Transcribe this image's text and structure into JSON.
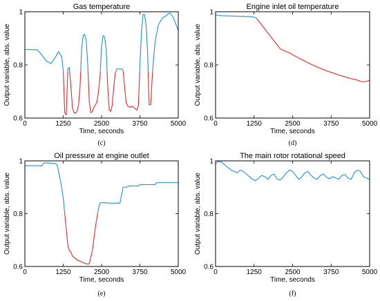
{
  "chart_data": [
    {
      "type": "line",
      "panel_label": "(c)",
      "title": "Gas temperature",
      "xlabel": "Time, seconds",
      "ylabel": "Output variable, abs. value",
      "xlim": [
        0,
        5000
      ],
      "ylim": [
        0.6,
        1.0
      ],
      "xticks": [
        "0",
        "1250",
        "2500",
        "3750",
        "5000"
      ],
      "yticks": [
        "0.6",
        "0.8",
        "1"
      ],
      "grid": false,
      "colors": {
        "normal": "#1f8fd6",
        "anomaly": "#e8262f"
      },
      "threshold": 0.775,
      "series": [
        {
          "x": [
            0,
            400,
            500,
            700,
            850,
            1000,
            1100,
            1200,
            1250,
            1300,
            1350,
            1400,
            1450,
            1500,
            1550,
            1600,
            1650,
            1700,
            1750,
            1800,
            1850,
            1900,
            1950,
            2000,
            2050,
            2100,
            2150,
            2200,
            2250,
            2300,
            2350,
            2400,
            2450,
            2500,
            2550,
            2600,
            2650,
            2700,
            2750,
            2800,
            2850,
            2900,
            2950,
            3000,
            3050,
            3100,
            3150,
            3200,
            3250,
            3300,
            3350,
            3450,
            3500,
            3600,
            3650,
            3700,
            3750,
            3800,
            3850,
            3900,
            3950,
            4000,
            4050,
            4100,
            4150,
            4200,
            4250,
            4300,
            4350,
            4400,
            4450,
            4500,
            4550,
            4600,
            4650,
            4700,
            4750,
            4800,
            4850,
            4900,
            4950,
            5000
          ],
          "y": [
            0.858,
            0.857,
            0.845,
            0.815,
            0.805,
            0.83,
            0.85,
            0.83,
            0.78,
            0.62,
            0.612,
            0.785,
            0.79,
            0.72,
            0.64,
            0.62,
            0.618,
            0.625,
            0.65,
            0.72,
            0.86,
            0.91,
            0.915,
            0.89,
            0.8,
            0.66,
            0.62,
            0.625,
            0.64,
            0.65,
            0.66,
            0.7,
            0.76,
            0.87,
            0.91,
            0.905,
            0.86,
            0.72,
            0.63,
            0.625,
            0.65,
            0.72,
            0.77,
            0.785,
            0.785,
            0.785,
            0.785,
            0.78,
            0.72,
            0.66,
            0.645,
            0.64,
            0.645,
            0.635,
            0.63,
            0.645,
            0.8,
            0.92,
            0.99,
            0.99,
            0.95,
            0.85,
            0.65,
            0.65,
            0.75,
            0.83,
            0.89,
            0.92,
            0.95,
            0.96,
            0.97,
            0.978,
            0.98,
            0.985,
            0.99,
            0.995,
            0.993,
            0.985,
            0.975,
            0.96,
            0.945,
            0.93
          ]
        }
      ]
    },
    {
      "type": "line",
      "panel_label": "(d)",
      "title": "Engine inlet oil temperature",
      "xlabel": "Time, seconds",
      "ylabel": "Output variable, abs. value",
      "xlim": [
        0,
        5000
      ],
      "ylim": [
        0.6,
        1.0
      ],
      "xticks": [
        "0",
        "1250",
        "2500",
        "3750",
        "5000"
      ],
      "yticks": [
        "0.6",
        "0.8",
        "1"
      ],
      "grid": false,
      "colors": {
        "normal": "#1f8fd6",
        "anomaly": "#e8262f"
      },
      "threshold": 0.975,
      "series": [
        {
          "x": [
            0,
            200,
            500,
            800,
            1000,
            1200,
            1300,
            1350,
            1400,
            1500,
            1600,
            1700,
            1800,
            1900,
            2000,
            2100,
            2200,
            2400,
            2600,
            2800,
            3000,
            3200,
            3400,
            3600,
            3800,
            4000,
            4200,
            4400,
            4600,
            4700,
            4800,
            4900,
            5000
          ],
          "y": [
            0.988,
            0.985,
            0.984,
            0.983,
            0.982,
            0.981,
            0.978,
            0.972,
            0.965,
            0.95,
            0.935,
            0.92,
            0.905,
            0.89,
            0.875,
            0.86,
            0.855,
            0.845,
            0.832,
            0.82,
            0.808,
            0.797,
            0.787,
            0.778,
            0.77,
            0.762,
            0.755,
            0.748,
            0.743,
            0.738,
            0.737,
            0.738,
            0.742
          ]
        }
      ]
    },
    {
      "type": "line",
      "panel_label": "(e)",
      "title": "Oil pressure at engine outlet",
      "xlabel": "Time, seconds",
      "ylabel": "Output variable, abs. value",
      "xlim": [
        0,
        5000
      ],
      "ylim": [
        0.6,
        1.0
      ],
      "xticks": [
        "0",
        "1250",
        "2500",
        "3750",
        "5000"
      ],
      "yticks": [
        "0.6",
        "0.8",
        "1"
      ],
      "grid": false,
      "colors": {
        "normal": "#1f8fd6",
        "anomaly": "#e8262f"
      },
      "threshold": 0.8,
      "series": [
        {
          "x": [
            0,
            400,
            550,
            600,
            650,
            1000,
            1050,
            1100,
            1150,
            1200,
            1250,
            1300,
            1350,
            1400,
            1450,
            1500,
            1550,
            1600,
            1650,
            1700,
            1800,
            1900,
            2000,
            2100,
            2200,
            2300,
            2400,
            2450,
            2500,
            2800,
            3000,
            3100,
            3150,
            3200,
            3300,
            3400,
            3700,
            3750,
            4000,
            4250,
            4300,
            4500,
            5000
          ],
          "y": [
            0.982,
            0.982,
            0.981,
            0.99,
            0.993,
            0.99,
            0.985,
            0.96,
            0.93,
            0.9,
            0.86,
            0.8,
            0.74,
            0.68,
            0.66,
            0.655,
            0.64,
            0.635,
            0.63,
            0.625,
            0.62,
            0.615,
            0.61,
            0.61,
            0.66,
            0.75,
            0.82,
            0.84,
            0.842,
            0.84,
            0.84,
            0.84,
            0.87,
            0.9,
            0.9,
            0.905,
            0.905,
            0.91,
            0.91,
            0.91,
            0.918,
            0.918,
            0.918
          ]
        }
      ]
    },
    {
      "type": "line",
      "panel_label": "(f)",
      "title": "The main rotor rotational speed",
      "xlabel": "Time, seconds",
      "ylabel": "Output variable, abs. value",
      "xlim": [
        0,
        5000
      ],
      "ylim": [
        0.6,
        1.0
      ],
      "xticks": [
        "0",
        "1250",
        "2500",
        "3750",
        "5000"
      ],
      "yticks": [
        "0.6",
        "0.8",
        "1"
      ],
      "grid": false,
      "colors": {
        "normal": "#1f8fd6",
        "anomaly": "#e8262f"
      },
      "threshold": 0.0,
      "series": [
        {
          "x": [
            0,
            100,
            200,
            300,
            400,
            500,
            600,
            700,
            800,
            900,
            1000,
            1100,
            1200,
            1300,
            1400,
            1500,
            1600,
            1700,
            1800,
            1900,
            2000,
            2100,
            2200,
            2300,
            2400,
            2500,
            2600,
            2700,
            2800,
            2900,
            3000,
            3100,
            3200,
            3300,
            3400,
            3500,
            3600,
            3700,
            3800,
            3900,
            4000,
            4100,
            4200,
            4300,
            4400,
            4500,
            4600,
            4700,
            4800,
            4900,
            5000
          ],
          "y": [
            0.99,
            0.998,
            0.995,
            0.985,
            0.975,
            0.965,
            0.96,
            0.955,
            0.965,
            0.96,
            0.95,
            0.94,
            0.93,
            0.925,
            0.935,
            0.945,
            0.94,
            0.93,
            0.945,
            0.95,
            0.93,
            0.928,
            0.94,
            0.955,
            0.965,
            0.96,
            0.945,
            0.93,
            0.94,
            0.955,
            0.96,
            0.945,
            0.935,
            0.93,
            0.945,
            0.95,
            0.938,
            0.932,
            0.94,
            0.935,
            0.93,
            0.945,
            0.948,
            0.935,
            0.93,
            0.955,
            0.965,
            0.96,
            0.94,
            0.935,
            0.93
          ]
        }
      ]
    }
  ]
}
